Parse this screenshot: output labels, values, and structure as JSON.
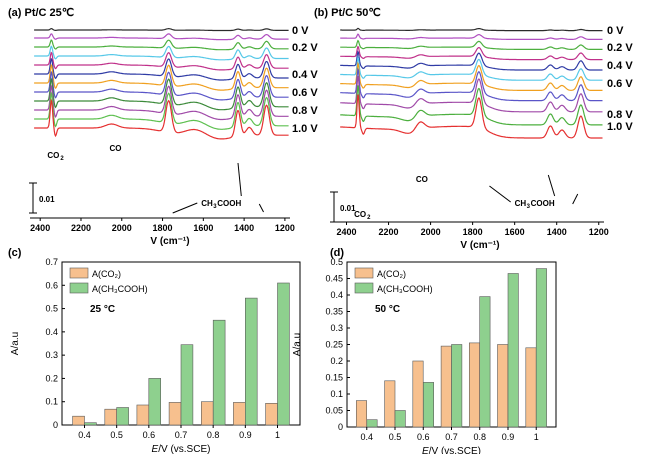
{
  "chart_data": [
    {
      "type": "line",
      "panel_label": "(a) Pt/C 25℃",
      "xlabel": "V (cm⁻¹)",
      "x_ticks": [
        2400,
        2200,
        2000,
        1800,
        1600,
        1400,
        1200
      ],
      "xlim": [
        2450,
        1175
      ],
      "scale_bar_label": "0.01",
      "peak_labels": {
        "co2": "CO",
        "co2_sub": "2",
        "co": "CO",
        "acetic": "CH",
        "acetic_sub1": "3",
        "acetic_rest": "COOH"
      },
      "series": [
        {
          "name": "0 V",
          "color": "#2b2b2b",
          "offset": 0,
          "scale": 0.05,
          "label": true
        },
        {
          "name": "",
          "color": "#b04ec0",
          "offset": 8,
          "scale": 0.15,
          "label": false
        },
        {
          "name": "0.2 V",
          "color": "#4caf3e",
          "offset": 17,
          "scale": 0.25,
          "label": true
        },
        {
          "name": "",
          "color": "#56c8e8",
          "offset": 26,
          "scale": 0.35,
          "label": false
        },
        {
          "name": "",
          "color": "#c0308a",
          "offset": 35,
          "scale": 0.45,
          "label": false
        },
        {
          "name": "0.4 V",
          "color": "#2f3ba5",
          "offset": 44,
          "scale": 0.55,
          "label": true
        },
        {
          "name": "",
          "color": "#f0a020",
          "offset": 53,
          "scale": 0.65,
          "label": false
        },
        {
          "name": "0.6 V",
          "color": "#5a55c8",
          "offset": 62,
          "scale": 0.72,
          "label": true
        },
        {
          "name": "",
          "color": "#3c8a3a",
          "offset": 71,
          "scale": 0.8,
          "label": false
        },
        {
          "name": "0.8 V",
          "color": "#a04aa8",
          "offset": 80,
          "scale": 0.87,
          "label": true
        },
        {
          "name": "",
          "color": "#5ec050",
          "offset": 89,
          "scale": 0.94,
          "label": false
        },
        {
          "name": "1.0 V",
          "color": "#e53030",
          "offset": 98,
          "scale": 1.0,
          "label": true
        }
      ]
    },
    {
      "type": "line",
      "panel_label": "(b) Pt/C 50℃",
      "xlabel": "V (cm⁻¹)",
      "x_ticks": [
        2400,
        2200,
        2000,
        1800,
        1600,
        1400,
        1200
      ],
      "xlim": [
        2450,
        1175
      ],
      "scale_bar_label": "0.01",
      "peak_labels": {
        "co2": "CO",
        "co2_sub": "2",
        "co": "CO",
        "acetic": "CH",
        "acetic_sub1": "3",
        "acetic_rest": "COOH"
      },
      "series": [
        {
          "name": "0 V",
          "color": "#2b2b2b",
          "offset": 0,
          "scale": 0.05,
          "label": true
        },
        {
          "name": "",
          "color": "#b04ec0",
          "offset": 8,
          "scale": 0.12,
          "label": false
        },
        {
          "name": "0.2 V",
          "color": "#4caf3e",
          "offset": 17,
          "scale": 0.2,
          "label": true
        },
        {
          "name": "",
          "color": "#c0308a",
          "offset": 26,
          "scale": 0.3,
          "label": false
        },
        {
          "name": "0.4 V",
          "color": "#2f3ba5",
          "offset": 35,
          "scale": 0.42,
          "label": true
        },
        {
          "name": "",
          "color": "#56c8e8",
          "offset": 44,
          "scale": 0.52,
          "label": false
        },
        {
          "name": "0.6 V",
          "color": "#f0a020",
          "offset": 53,
          "scale": 0.62,
          "label": true
        },
        {
          "name": "",
          "color": "#5a55c8",
          "offset": 62,
          "scale": 0.72,
          "label": false
        },
        {
          "name": "",
          "color": "#a04aa8",
          "offset": 72,
          "scale": 0.82,
          "label": false
        },
        {
          "name": "0.8 V",
          "color": "#4caf3e",
          "offset": 84,
          "scale": 0.91,
          "label": true
        },
        {
          "name": "1.0 V",
          "color": "#e53030",
          "offset": 96,
          "scale": 1.0,
          "label": true
        }
      ]
    },
    {
      "type": "bar",
      "panel_label": "(c)",
      "annotation": "25 °C",
      "categories": [
        "0.4",
        "0.5",
        "0.6",
        "0.7",
        "0.8",
        "0.9",
        "1"
      ],
      "series": [
        {
          "name": "A(CO₂)",
          "color": "#f7c08e",
          "values": [
            0.038,
            0.068,
            0.086,
            0.097,
            0.1,
            0.097,
            0.093
          ]
        },
        {
          "name": "A(CH₃COOH)",
          "color": "#8ed08e",
          "values": [
            0.01,
            0.075,
            0.2,
            0.345,
            0.45,
            0.545,
            0.61
          ]
        }
      ],
      "xlabel": "E/V (vs.SCE)",
      "ylabel": "A/a.u",
      "ylim": [
        0,
        0.7
      ],
      "y_ticks": [
        0,
        0.1,
        0.2,
        0.3,
        0.4,
        0.5,
        0.6,
        0.7
      ],
      "legend": "top-left"
    },
    {
      "type": "bar",
      "panel_label": "(d)",
      "annotation": "50 °C",
      "categories": [
        "0.4",
        "0.5",
        "0.6",
        "0.7",
        "0.8",
        "0.9",
        "1"
      ],
      "series": [
        {
          "name": "A(CO₂)",
          "color": "#f7c08e",
          "values": [
            0.08,
            0.14,
            0.2,
            0.245,
            0.255,
            0.25,
            0.24
          ]
        },
        {
          "name": "A(CH₃COOH)",
          "color": "#8ed08e",
          "values": [
            0.022,
            0.05,
            0.135,
            0.25,
            0.395,
            0.465,
            0.48
          ]
        }
      ],
      "xlabel": "E/V (vs.SCE)",
      "ylabel": "A/a.u",
      "ylim": [
        0,
        0.5
      ],
      "y_ticks": [
        0,
        0.05,
        0.1,
        0.15,
        0.2,
        0.25,
        0.3,
        0.35,
        0.4,
        0.45,
        0.5
      ],
      "legend": "top-left"
    }
  ]
}
